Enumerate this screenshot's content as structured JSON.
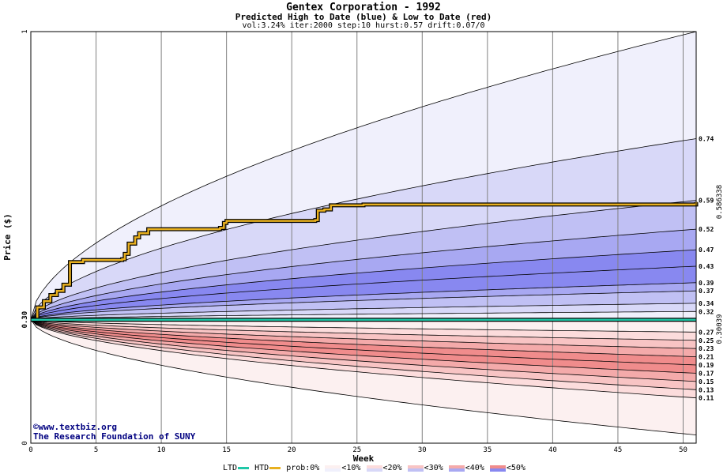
{
  "header": {
    "title": "Gentex Corporation - 1992",
    "subtitle": "Predicted High to Date (blue) &  Low to Date (red)",
    "params": "vol:3.24% iter:2000 step:10 hurst:0.57 drift:0.07/0"
  },
  "credits": {
    "line1": "©www.textbiz.org",
    "line2": "The Research Foundation of SUNY"
  },
  "legend": {
    "ltd": "LTD",
    "htd": "HTD",
    "prob": "prob:0%",
    "bins": [
      "<10%",
      "<20%",
      "<30%",
      "<40%",
      "<50%"
    ]
  },
  "colors": {
    "blue_bands": [
      "#f0f0fc",
      "#d8d8f8",
      "#c0c0f4",
      "#a8a8f2",
      "#8888f0"
    ],
    "red_bands": [
      "#fcf0f0",
      "#fcdcdc",
      "#f8c4c4",
      "#f4aaaa",
      "#f08c8c"
    ],
    "htd_line": "#e8b020",
    "ltd_line": "#20c8a8",
    "high_end_label": "#b08000",
    "low_end_label": "#009070"
  },
  "chart_data": {
    "type": "area",
    "xlabel": "Week",
    "ylabel": "Price ($)",
    "xlim": [
      0,
      51
    ],
    "ylim": [
      0,
      1
    ],
    "x_ticks": [
      0,
      5,
      10,
      15,
      20,
      25,
      30,
      35,
      40,
      45,
      50
    ],
    "y_ticks": [
      "0",
      "0.30",
      "1"
    ],
    "grid": true,
    "start_price": 0.3,
    "high_band_ends": [
      0.74,
      0.59,
      0.52,
      0.47,
      0.43,
      0.39,
      0.37,
      0.34,
      0.32
    ],
    "low_band_ends": [
      0.27,
      0.25,
      0.23,
      0.21,
      0.19,
      0.17,
      0.15,
      0.13,
      0.11
    ],
    "outer_high_end": 1.0,
    "outer_low_end": 0.02,
    "htd_end_label": "0.586338",
    "ltd_end_label": "0.30039",
    "htd_path": [
      [
        0,
        0.3
      ],
      [
        0.5,
        0.33
      ],
      [
        1,
        0.345
      ],
      [
        1.5,
        0.36
      ],
      [
        2,
        0.37
      ],
      [
        2.5,
        0.385
      ],
      [
        3,
        0.44
      ],
      [
        4,
        0.445
      ],
      [
        7,
        0.447
      ],
      [
        7.2,
        0.46
      ],
      [
        7.5,
        0.485
      ],
      [
        8,
        0.5
      ],
      [
        8.3,
        0.51
      ],
      [
        9,
        0.52
      ],
      [
        14.5,
        0.523
      ],
      [
        14.8,
        0.535
      ],
      [
        15,
        0.54
      ],
      [
        21.8,
        0.542
      ],
      [
        22,
        0.565
      ],
      [
        22.5,
        0.568
      ],
      [
        23,
        0.578
      ],
      [
        25.5,
        0.58
      ],
      [
        26,
        0.58
      ],
      [
        51,
        0.586
      ]
    ],
    "ltd_value": 0.3
  }
}
